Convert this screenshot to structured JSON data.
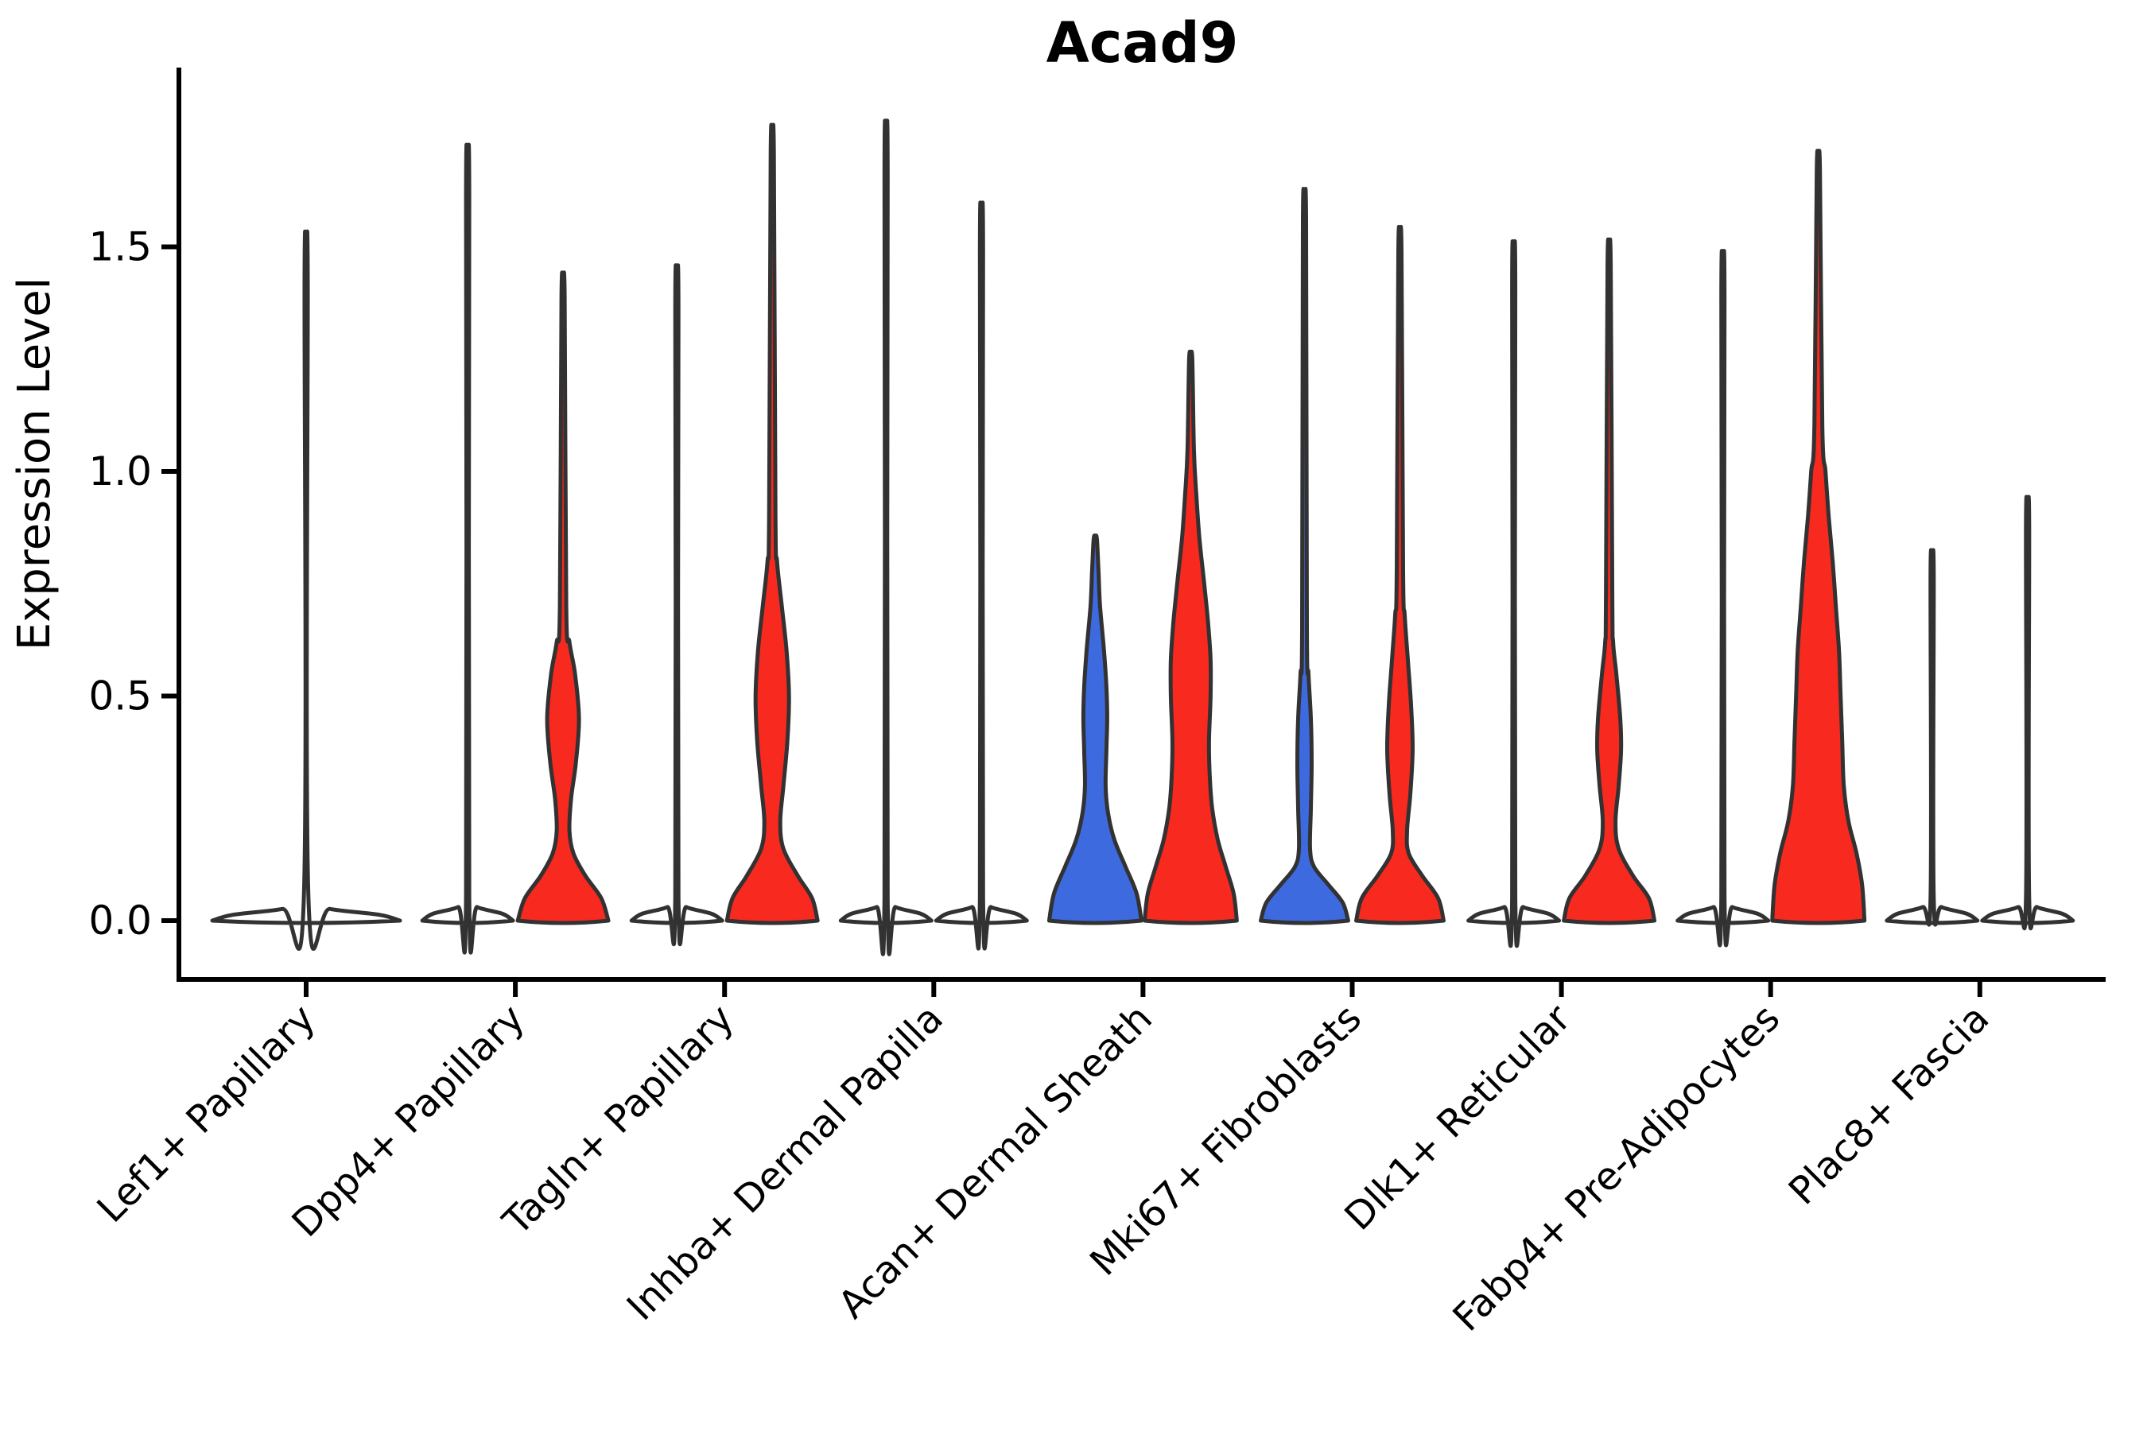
{
  "chart_data": {
    "type": "violin",
    "title": "Acad9",
    "ylabel": "Expression Level",
    "xlabel": "",
    "ylim": [
      -0.13,
      1.9
    ],
    "grid": false,
    "legend": "none",
    "yticks": [
      {
        "value": 0.0,
        "label": "0.0"
      },
      {
        "value": 0.5,
        "label": "0.5"
      },
      {
        "value": 1.0,
        "label": "1.0"
      },
      {
        "value": 1.5,
        "label": "1.5"
      }
    ],
    "categories": [
      "Lef1+ Papillary",
      "Dpp4+ Papillary",
      "Tagln+ Papillary",
      "Inhba+ Dermal Papilla",
      "Acan+ Dermal Sheath",
      "Mki67+ Fibroblasts",
      "Dlk1+ Reticular",
      "Fabp4+ Pre-Adipocytes",
      "Plac8+ Fascia"
    ],
    "colors": {
      "red": "#f8291f",
      "blue": "#3e6adf",
      "none": "#ffffff",
      "outline": "#323232",
      "axis": "#000000"
    },
    "groups": [
      {
        "label": "Lef1+ Papillary",
        "violins": [
          {
            "offset": 0,
            "fill": "none",
            "max": 1.43,
            "profile": [
              [
                0,
                118
              ],
              [
                0.013,
                92
              ],
              [
                0.026,
                30
              ],
              [
                0.045,
                3
              ],
              [
                1.43,
                2
              ]
            ]
          }
        ]
      },
      {
        "label": "Dpp4+ Papillary",
        "violins": [
          {
            "offset": -1,
            "fill": "none",
            "max": 1.61,
            "profile": [
              [
                0,
                57
              ],
              [
                0.015,
                44
              ],
              [
                0.03,
                12
              ],
              [
                0.05,
                2
              ],
              [
                1.61,
                2
              ]
            ]
          },
          {
            "offset": 1,
            "fill": "red",
            "max": 1.39,
            "profile": [
              [
                0,
                57
              ],
              [
                0.05,
                48
              ],
              [
                0.1,
                28
              ],
              [
                0.15,
                13
              ],
              [
                0.2,
                8
              ],
              [
                0.27,
                10
              ],
              [
                0.35,
                16
              ],
              [
                0.45,
                20
              ],
              [
                0.55,
                15
              ],
              [
                0.62,
                8
              ],
              [
                0.7,
                4
              ],
              [
                1.39,
                2
              ]
            ]
          }
        ]
      },
      {
        "label": "Tagln+ Papillary",
        "violins": [
          {
            "offset": -1,
            "fill": "none",
            "max": 1.36,
            "profile": [
              [
                0,
                57
              ],
              [
                0.015,
                44
              ],
              [
                0.03,
                12
              ],
              [
                0.05,
                2
              ],
              [
                1.36,
                2
              ]
            ]
          },
          {
            "offset": 1,
            "fill": "red",
            "max": 1.71,
            "profile": [
              [
                0,
                57
              ],
              [
                0.05,
                50
              ],
              [
                0.1,
                32
              ],
              [
                0.16,
                14
              ],
              [
                0.22,
                10
              ],
              [
                0.3,
                14
              ],
              [
                0.4,
                19
              ],
              [
                0.5,
                21
              ],
              [
                0.6,
                18
              ],
              [
                0.7,
                12
              ],
              [
                0.8,
                6
              ],
              [
                0.9,
                4
              ],
              [
                1.71,
                2
              ]
            ]
          }
        ]
      },
      {
        "label": "Inhba+ Dermal Papilla",
        "violins": [
          {
            "offset": -1,
            "fill": "none",
            "max": 1.66,
            "profile": [
              [
                0,
                57
              ],
              [
                0.015,
                44
              ],
              [
                0.03,
                12
              ],
              [
                0.05,
                2
              ],
              [
                1.66,
                2
              ]
            ]
          },
          {
            "offset": 1,
            "fill": "none",
            "max": 1.49,
            "profile": [
              [
                0,
                57
              ],
              [
                0.015,
                44
              ],
              [
                0.03,
                12
              ],
              [
                0.05,
                2
              ],
              [
                1.49,
                2
              ]
            ]
          }
        ]
      },
      {
        "label": "Acan+ Dermal Sheath",
        "violins": [
          {
            "offset": -1,
            "fill": "blue",
            "max": 0.85,
            "profile": [
              [
                0,
                58
              ],
              [
                0.06,
                52
              ],
              [
                0.12,
                38
              ],
              [
                0.18,
                24
              ],
              [
                0.24,
                16
              ],
              [
                0.3,
                13
              ],
              [
                0.38,
                14
              ],
              [
                0.45,
                15
              ],
              [
                0.52,
                14
              ],
              [
                0.6,
                11
              ],
              [
                0.7,
                6
              ],
              [
                0.78,
                4
              ],
              [
                0.85,
                2
              ]
            ]
          },
          {
            "offset": 1,
            "fill": "red",
            "max": 1.25,
            "profile": [
              [
                0,
                58
              ],
              [
                0.06,
                54
              ],
              [
                0.12,
                44
              ],
              [
                0.18,
                34
              ],
              [
                0.25,
                27
              ],
              [
                0.32,
                24
              ],
              [
                0.4,
                23
              ],
              [
                0.5,
                25
              ],
              [
                0.58,
                25
              ],
              [
                0.66,
                22
              ],
              [
                0.75,
                17
              ],
              [
                0.85,
                11
              ],
              [
                0.95,
                7
              ],
              [
                1.05,
                4
              ],
              [
                1.25,
                2
              ]
            ]
          }
        ]
      },
      {
        "label": "Mki67+ Fibroblasts",
        "violins": [
          {
            "offset": -1,
            "fill": "blue",
            "max": 1.56,
            "profile": [
              [
                0,
                55
              ],
              [
                0.04,
                48
              ],
              [
                0.08,
                30
              ],
              [
                0.12,
                12
              ],
              [
                0.16,
                7
              ],
              [
                0.25,
                8
              ],
              [
                0.35,
                9
              ],
              [
                0.45,
                8
              ],
              [
                0.55,
                5
              ],
              [
                0.65,
                3
              ],
              [
                1.56,
                2
              ]
            ]
          },
          {
            "offset": 1,
            "fill": "red",
            "max": 1.49,
            "profile": [
              [
                0,
                55
              ],
              [
                0.05,
                48
              ],
              [
                0.1,
                28
              ],
              [
                0.15,
                11
              ],
              [
                0.2,
                9
              ],
              [
                0.28,
                13
              ],
              [
                0.38,
                16
              ],
              [
                0.48,
                14
              ],
              [
                0.58,
                10
              ],
              [
                0.68,
                6
              ],
              [
                0.78,
                4
              ],
              [
                1.49,
                2
              ]
            ]
          }
        ]
      },
      {
        "label": "Dlk1+ Reticular",
        "violins": [
          {
            "offset": -1,
            "fill": "none",
            "max": 1.41,
            "profile": [
              [
                0,
                57
              ],
              [
                0.015,
                44
              ],
              [
                0.03,
                12
              ],
              [
                0.05,
                2
              ],
              [
                1.41,
                2
              ]
            ]
          },
          {
            "offset": 1,
            "fill": "red",
            "max": 1.46,
            "profile": [
              [
                0,
                57
              ],
              [
                0.05,
                50
              ],
              [
                0.1,
                30
              ],
              [
                0.16,
                12
              ],
              [
                0.22,
                8
              ],
              [
                0.3,
                12
              ],
              [
                0.38,
                15
              ],
              [
                0.45,
                14
              ],
              [
                0.55,
                9
              ],
              [
                0.62,
                5
              ],
              [
                0.72,
                4
              ],
              [
                1.46,
                2
              ]
            ]
          }
        ]
      },
      {
        "label": "Fabp4+ Pre-Adipocytes",
        "violins": [
          {
            "offset": -1,
            "fill": "none",
            "max": 1.39,
            "profile": [
              [
                0,
                57
              ],
              [
                0.015,
                44
              ],
              [
                0.03,
                12
              ],
              [
                0.05,
                2
              ],
              [
                1.39,
                2
              ]
            ]
          },
          {
            "offset": 1,
            "fill": "red",
            "max": 1.67,
            "profile": [
              [
                0,
                58
              ],
              [
                0.08,
                55
              ],
              [
                0.15,
                48
              ],
              [
                0.22,
                38
              ],
              [
                0.3,
                32
              ],
              [
                0.4,
                30
              ],
              [
                0.5,
                28
              ],
              [
                0.6,
                26
              ],
              [
                0.7,
                22
              ],
              [
                0.8,
                18
              ],
              [
                0.9,
                13
              ],
              [
                1.0,
                9
              ],
              [
                1.1,
                5
              ],
              [
                1.67,
                2
              ]
            ]
          }
        ]
      },
      {
        "label": "Plac8+ Fascia",
        "violins": [
          {
            "offset": -1,
            "fill": "none",
            "max": 0.77,
            "profile": [
              [
                0,
                57
              ],
              [
                0.015,
                44
              ],
              [
                0.03,
                12
              ],
              [
                0.05,
                2
              ],
              [
                0.77,
                2
              ]
            ]
          },
          {
            "offset": 1,
            "fill": "none",
            "max": 0.88,
            "profile": [
              [
                0,
                57
              ],
              [
                0.015,
                44
              ],
              [
                0.03,
                12
              ],
              [
                0.05,
                2
              ],
              [
                0.88,
                2
              ]
            ]
          }
        ]
      }
    ]
  },
  "layout_text": {
    "title": "Acad9",
    "ylabel": "Expression Level"
  }
}
